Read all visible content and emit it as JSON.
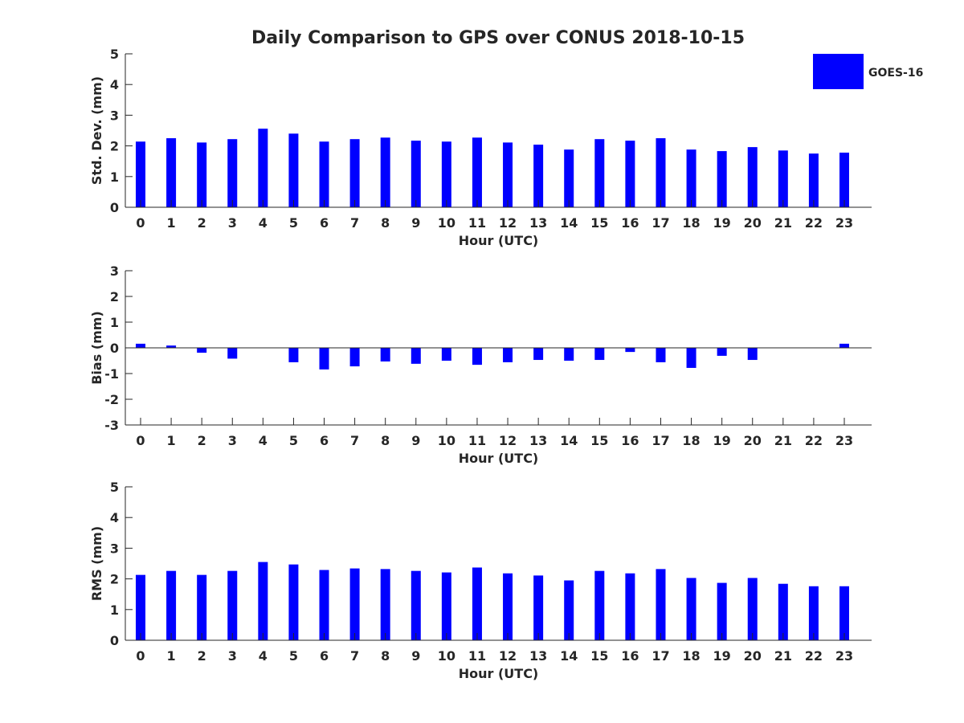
{
  "chart_data": [
    {
      "type": "bar",
      "title": "Daily Comparison to GPS over CONUS 2018-10-15",
      "xlabel": "Hour (UTC)",
      "ylabel": "Std. Dev. (mm)",
      "ylim": [
        0,
        5
      ],
      "yticks": [
        0,
        1,
        2,
        3,
        4,
        5
      ],
      "categories": [
        "0",
        "1",
        "2",
        "3",
        "4",
        "5",
        "6",
        "7",
        "8",
        "9",
        "10",
        "11",
        "12",
        "13",
        "14",
        "15",
        "16",
        "17",
        "18",
        "19",
        "20",
        "21",
        "22",
        "23"
      ],
      "series": [
        {
          "name": "GOES-16",
          "color": "#0000ff",
          "values": [
            2.14,
            2.25,
            2.11,
            2.22,
            2.56,
            2.4,
            2.14,
            2.22,
            2.27,
            2.17,
            2.14,
            2.27,
            2.11,
            2.04,
            1.88,
            2.22,
            2.17,
            2.25,
            1.88,
            1.83,
            1.96,
            1.85,
            1.75,
            1.78
          ]
        }
      ],
      "legend": {
        "entries": [
          "GOES-16"
        ],
        "placement": "top-right"
      },
      "grid": false
    },
    {
      "type": "bar",
      "xlabel": "Hour (UTC)",
      "ylabel": "Bias (mm)",
      "ylim": [
        -3,
        3
      ],
      "yticks": [
        -3,
        -2,
        -1,
        0,
        1,
        2,
        3
      ],
      "categories": [
        "0",
        "1",
        "2",
        "3",
        "4",
        "5",
        "6",
        "7",
        "8",
        "9",
        "10",
        "11",
        "12",
        "13",
        "14",
        "15",
        "16",
        "17",
        "18",
        "19",
        "20",
        "21",
        "22",
        "23"
      ],
      "series": [
        {
          "name": "GOES-16",
          "color": "#0000ff",
          "values": [
            0.16,
            0.09,
            -0.19,
            -0.42,
            0,
            -0.56,
            -0.84,
            -0.72,
            -0.53,
            -0.62,
            -0.5,
            -0.66,
            -0.56,
            -0.47,
            -0.5,
            -0.47,
            -0.16,
            -0.56,
            -0.78,
            -0.31,
            -0.47,
            0,
            0,
            0.16
          ]
        }
      ],
      "grid": false
    },
    {
      "type": "bar",
      "xlabel": "Hour (UTC)",
      "ylabel": "RMS (mm)",
      "ylim": [
        0,
        5
      ],
      "yticks": [
        0,
        1,
        2,
        3,
        4,
        5
      ],
      "categories": [
        "0",
        "1",
        "2",
        "3",
        "4",
        "5",
        "6",
        "7",
        "8",
        "9",
        "10",
        "11",
        "12",
        "13",
        "14",
        "15",
        "16",
        "17",
        "18",
        "19",
        "20",
        "21",
        "22",
        "23"
      ],
      "series": [
        {
          "name": "GOES-16",
          "color": "#0000ff",
          "values": [
            2.13,
            2.26,
            2.13,
            2.26,
            2.55,
            2.47,
            2.29,
            2.34,
            2.32,
            2.26,
            2.21,
            2.37,
            2.18,
            2.11,
            1.95,
            2.26,
            2.18,
            2.32,
            2.03,
            1.87,
            2.03,
            1.84,
            1.76,
            1.76
          ]
        }
      ],
      "grid": false
    }
  ]
}
